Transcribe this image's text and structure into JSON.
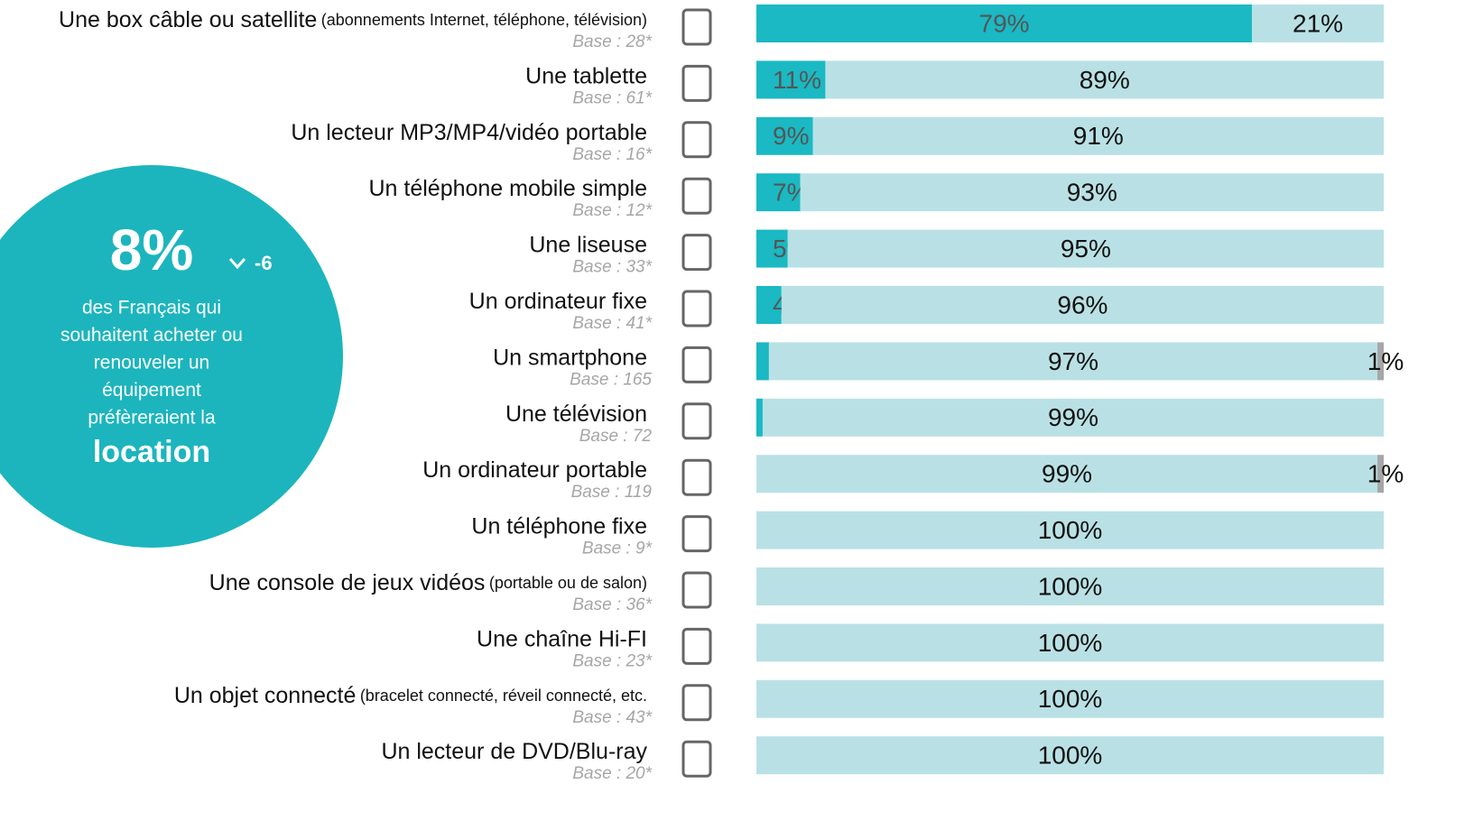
{
  "chart_data": {
    "type": "bar",
    "orientation": "horizontal",
    "stacked": true,
    "categories": [
      "Une box câble ou satellite",
      "Une tablette",
      "Un lecteur MP3/MP4/vidéo portable",
      "Un téléphone mobile simple",
      "Une liseuse",
      "Un ordinateur fixe",
      "Un smartphone",
      "Une télévision",
      "Un ordinateur portable",
      "Un téléphone fixe",
      "Une console de jeux vidéos",
      "Une chaîne Hi-FI",
      "Un objet connecté",
      "Un lecteur de DVD/Blu-ray"
    ],
    "notes": [
      "(abonnements Internet, téléphone, télévision)",
      null,
      null,
      null,
      null,
      null,
      null,
      null,
      null,
      null,
      "(portable ou de salon)",
      null,
      "(bracelet connecté, réveil connecté, etc.",
      null
    ],
    "bases": [
      "Base : 28*",
      "Base : 61*",
      "Base : 16*",
      "Base : 12*",
      "Base : 33*",
      "Base : 41*",
      "Base : 165",
      "Base : 72",
      "Base : 119",
      "Base : 9*",
      "Base : 36*",
      "Base : 23*",
      "Base : 43*",
      "Base : 20*"
    ],
    "xlim": [
      0,
      100
    ],
    "series": [
      {
        "color": "#1ab9c3",
        "values": [
          79,
          11,
          9,
          7,
          5,
          4,
          2,
          1,
          0,
          0,
          0,
          0,
          0,
          0
        ],
        "value_labels": [
          "79%",
          "11%",
          "9%",
          "7%",
          "5%",
          "4%",
          "2%",
          "1%",
          null,
          null,
          null,
          null,
          null,
          null
        ]
      },
      {
        "color": "#b9e1e5",
        "values": [
          21,
          89,
          91,
          93,
          95,
          96,
          97,
          99,
          99,
          100,
          100,
          100,
          100,
          100
        ],
        "value_labels": [
          "21%",
          "89%",
          "91%",
          "93%",
          "95%",
          "96%",
          "97%",
          "99%",
          "99%",
          "100%",
          "100%",
          "100%",
          "100%",
          "100%"
        ]
      },
      {
        "color": "#a6a6a6",
        "values": [
          0,
          0,
          0,
          0,
          0,
          0,
          1,
          0,
          1,
          0,
          0,
          0,
          0,
          0
        ],
        "value_labels": [
          null,
          null,
          null,
          null,
          null,
          null,
          "1%",
          null,
          "1%",
          null,
          null,
          null,
          null,
          null
        ]
      }
    ]
  },
  "callout": {
    "value": {
      "value": 8,
      "label": "8%"
    },
    "change": -6,
    "lines": [
      "des Français qui",
      "souhaitent acheter ou",
      "renouveler un",
      "équipement",
      "préfèreraient la"
    ],
    "emphasis": "location",
    "color": "#1cb5bd"
  }
}
